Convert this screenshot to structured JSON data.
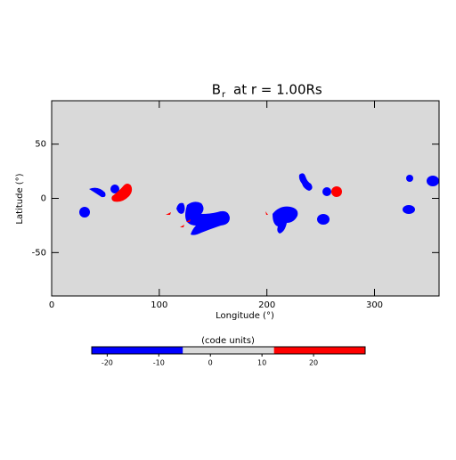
{
  "chart_data": {
    "type": "map",
    "title_symbol": "B",
    "title_subscript": "r",
    "title_rest": "at r = 1.00Rs",
    "x_label": "Longitude (°)",
    "y_label": "Latitude (°)",
    "xlim": [
      0,
      360
    ],
    "ylim": [
      -90,
      90
    ],
    "xticks": [
      0,
      100,
      200,
      300
    ],
    "yticks": [
      -50,
      0,
      50
    ],
    "background": "#d9d9d9",
    "colorbar": {
      "label": "(code units)",
      "lim": [
        -23,
        30
      ],
      "ticks": [
        -20,
        -10,
        0,
        10,
        20
      ],
      "colors": [
        "#0000ff",
        "#d9d9d9",
        "#ff0000"
      ]
    }
  }
}
